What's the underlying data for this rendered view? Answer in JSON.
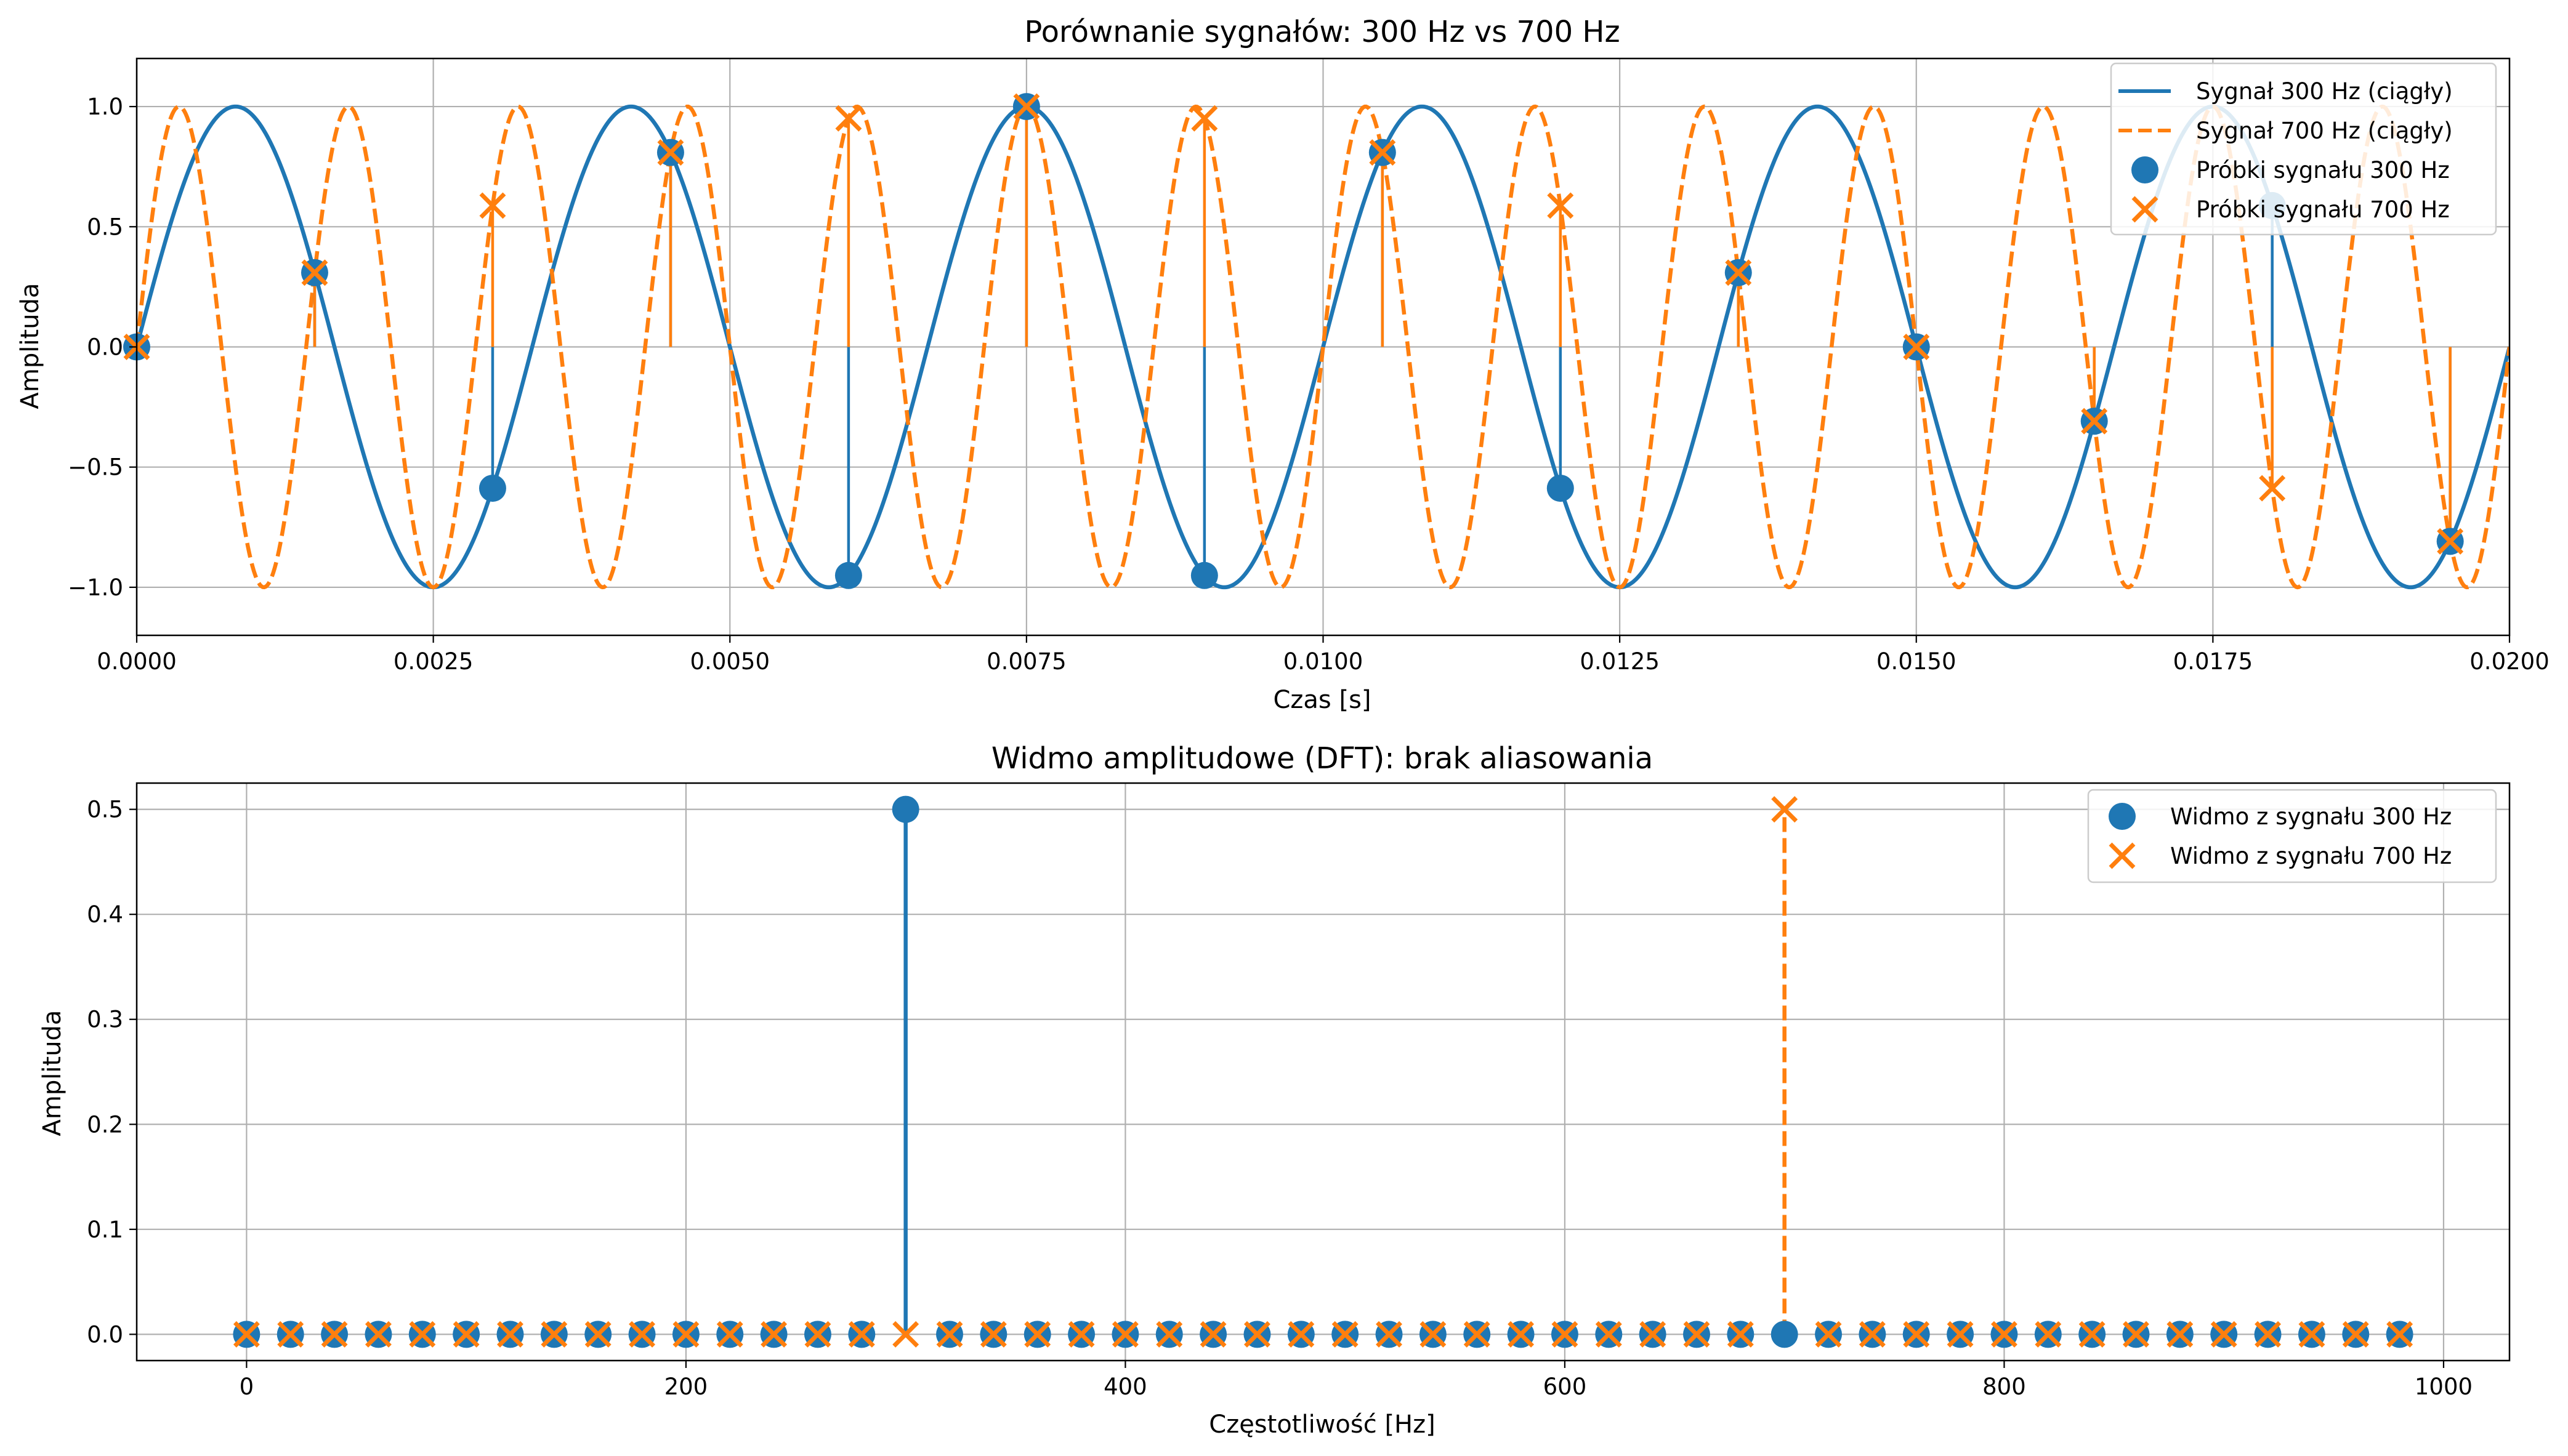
{
  "figure": {
    "colors": {
      "blue": "#1f77b4",
      "orange": "#ff7f0e",
      "grid": "#b0b0b0",
      "frame": "#000000"
    }
  },
  "chart_data": [
    {
      "type": "line",
      "title": "Porównanie sygnałów: 300 Hz vs 700 Hz",
      "xlabel": "Czas [s]",
      "ylabel": "Amplituda",
      "xlim": [
        0,
        0.02
      ],
      "ylim": [
        -1.2,
        1.2
      ],
      "x_ticks": [
        0,
        0.0025,
        0.005,
        0.0075,
        0.01,
        0.0125,
        0.015,
        0.0175,
        0.02
      ],
      "x_tick_labels": [
        "0.0000",
        "0.0025",
        "0.0050",
        "0.0075",
        "0.0100",
        "0.0125",
        "0.0150",
        "0.0175",
        "0.0200"
      ],
      "y_ticks": [
        -1.0,
        -0.5,
        0.0,
        0.5,
        1.0
      ],
      "y_tick_labels": [
        "−1.0",
        "−0.5",
        "0.0",
        "0.5",
        "1.0"
      ],
      "grid": true,
      "legend_position": "top-right",
      "series": [
        {
          "name": "Sygnał 300 Hz (ciągły)",
          "kind": "line",
          "style": "solid",
          "color": "#1f77b4",
          "frequency_hz": 300
        },
        {
          "name": "Sygnał 700 Hz (ciągły)",
          "kind": "line",
          "style": "dashed",
          "color": "#ff7f0e",
          "frequency_hz": 700
        },
        {
          "name": "Próbki sygnału 300 Hz",
          "kind": "stem",
          "marker": "circle",
          "color": "#1f77b4",
          "x": [
            0,
            0.0015,
            0.003,
            0.0045,
            0.006,
            0.0075,
            0.009,
            0.0105,
            0.012,
            0.0135,
            0.015,
            0.0165,
            0.018,
            0.0195
          ],
          "y": [
            0,
            0.309,
            -0.588,
            0.809,
            -0.951,
            1.0,
            -0.951,
            0.809,
            -0.588,
            0.309,
            0,
            -0.309,
            0.588,
            -0.809
          ]
        },
        {
          "name": "Próbki sygnału 700 Hz",
          "kind": "stem",
          "marker": "x",
          "color": "#ff7f0e",
          "x": [
            0,
            0.0015,
            0.003,
            0.0045,
            0.006,
            0.0075,
            0.009,
            0.0105,
            0.012,
            0.0135,
            0.015,
            0.0165,
            0.018,
            0.0195
          ],
          "y": [
            0,
            0.309,
            0.588,
            0.809,
            0.951,
            1.0,
            0.951,
            0.809,
            0.588,
            0.309,
            0,
            -0.309,
            -0.588,
            -0.809
          ]
        }
      ]
    },
    {
      "type": "stem",
      "title": "Widmo amplitudowe (DFT): brak aliasowania",
      "xlabel": "Częstotliwość [Hz]",
      "ylabel": "Amplituda",
      "xlim": [
        -50,
        1030
      ],
      "ylim": [
        -0.025,
        0.525
      ],
      "x_ticks": [
        0,
        200,
        400,
        600,
        800,
        1000
      ],
      "x_tick_labels": [
        "0",
        "200",
        "400",
        "600",
        "800",
        "1000"
      ],
      "y_ticks": [
        0.0,
        0.1,
        0.2,
        0.3,
        0.4,
        0.5
      ],
      "y_tick_labels": [
        "0.0",
        "0.1",
        "0.2",
        "0.3",
        "0.4",
        "0.5"
      ],
      "grid": true,
      "legend_position": "top-right",
      "frequency_bins": {
        "start": 0,
        "step": 20,
        "count": 50
      },
      "series": [
        {
          "name": "Widmo z sygnału 300 Hz",
          "marker": "circle",
          "style": "solid",
          "color": "#1f77b4",
          "peak_frequency": 300,
          "peak_value": 0.5,
          "other_values": 0
        },
        {
          "name": "Widmo z sygnału 700 Hz",
          "marker": "x",
          "style": "dashed",
          "color": "#ff7f0e",
          "peak_frequency": 700,
          "peak_value": 0.5,
          "other_values": 0
        }
      ]
    }
  ]
}
